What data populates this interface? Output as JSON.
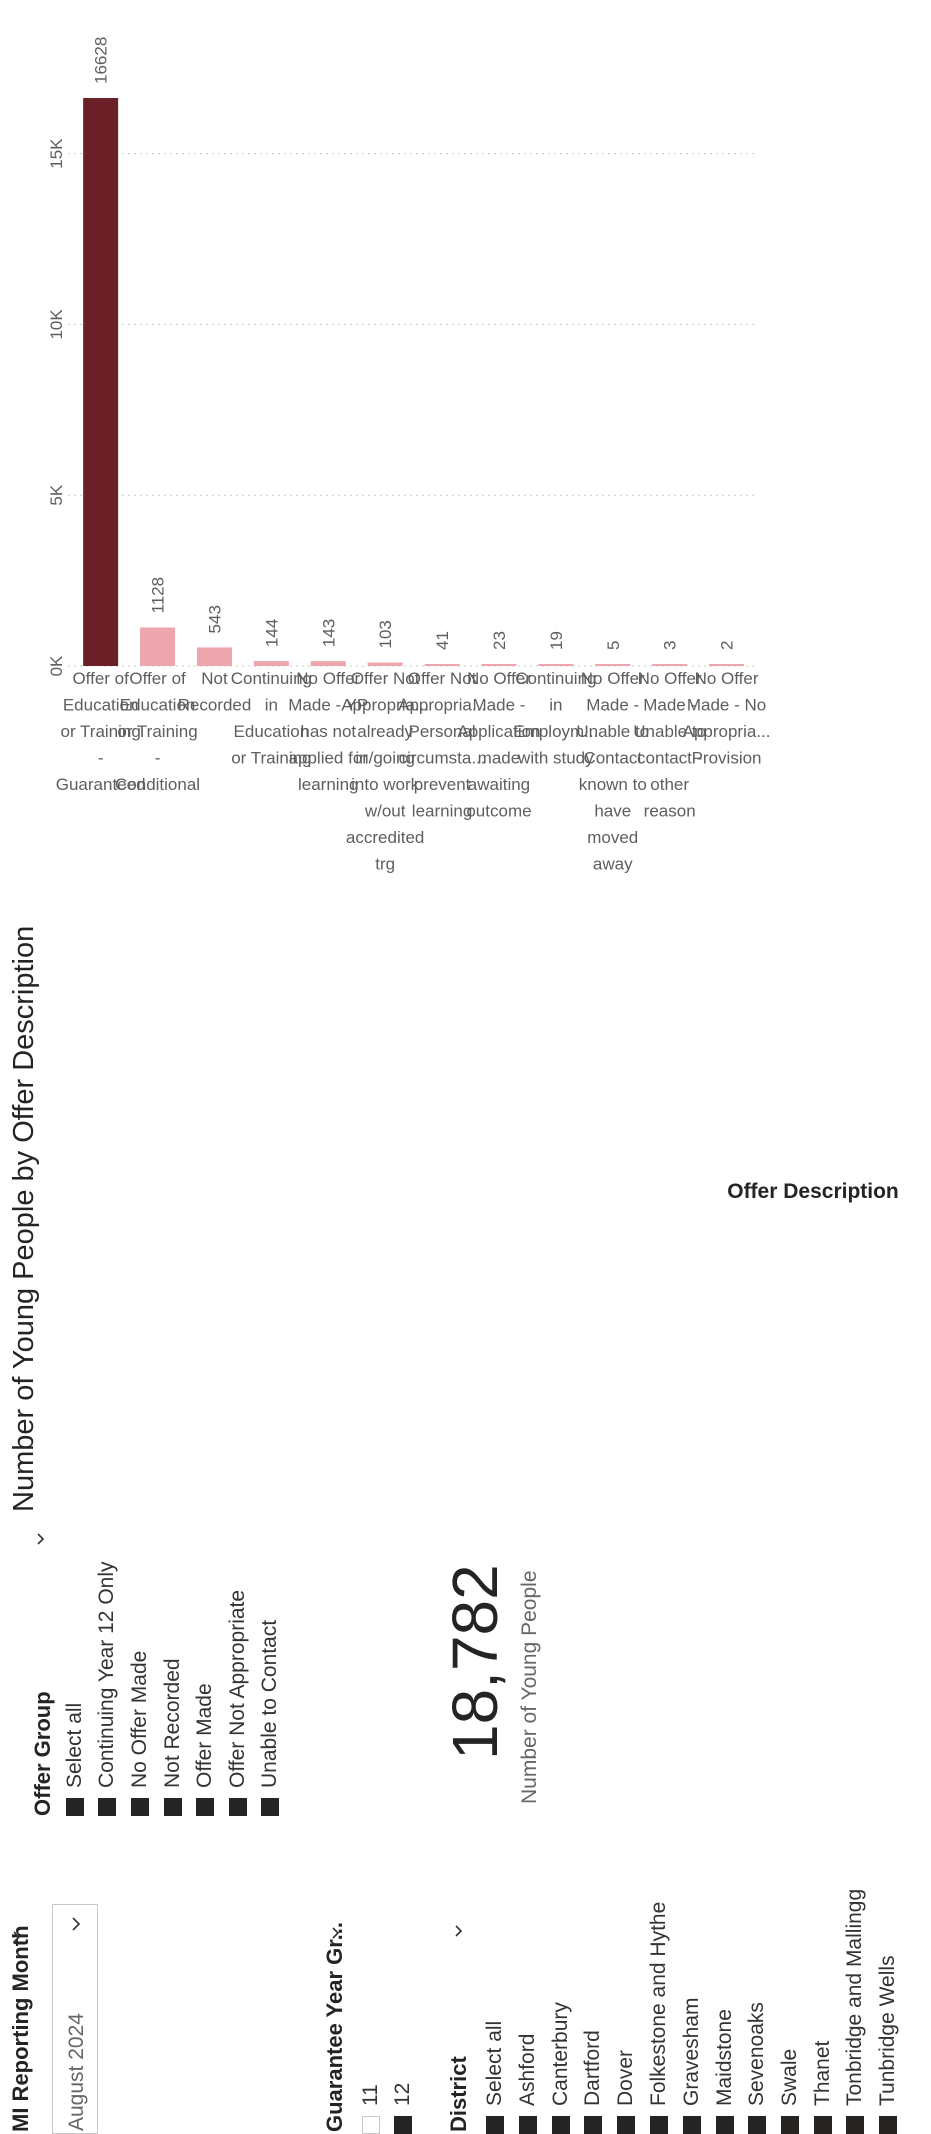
{
  "mi_reporting_month": {
    "title": "MI Reporting Month",
    "selected": "August 2024"
  },
  "guarantee_year": {
    "title": "Guarantee Year Gr...",
    "items": [
      {
        "label": "11",
        "checked": false
      },
      {
        "label": "12",
        "checked": true
      }
    ]
  },
  "district": {
    "title": "District",
    "items": [
      {
        "label": "Select all",
        "checked": true
      },
      {
        "label": "Ashford",
        "checked": true
      },
      {
        "label": "Canterbury",
        "checked": true
      },
      {
        "label": "Dartford",
        "checked": true
      },
      {
        "label": "Dover",
        "checked": true
      },
      {
        "label": "Folkestone and Hythe",
        "checked": true
      },
      {
        "label": "Gravesham",
        "checked": true
      },
      {
        "label": "Maidstone",
        "checked": true
      },
      {
        "label": "Sevenoaks",
        "checked": true
      },
      {
        "label": "Swale",
        "checked": true
      },
      {
        "label": "Thanet",
        "checked": true
      },
      {
        "label": "Tonbridge and Mallingg",
        "checked": true
      },
      {
        "label": "Tunbridge Wells",
        "checked": true
      }
    ]
  },
  "offer_group": {
    "title": "Offer Group",
    "items": [
      {
        "label": "Select all",
        "checked": true
      },
      {
        "label": "Continuing Year 12 Only",
        "checked": true
      },
      {
        "label": "No Offer Made",
        "checked": true
      },
      {
        "label": "Not Recorded",
        "checked": true
      },
      {
        "label": "Offer Made",
        "checked": true
      },
      {
        "label": "Offer Not Appropriate",
        "checked": true
      },
      {
        "label": "Unable to Contact",
        "checked": true
      }
    ]
  },
  "kpi": {
    "value": "18,782",
    "label": "Number of Young People"
  },
  "colors": {
    "bar_primary": "#6b2028",
    "bar_secondary": "#eda6ad",
    "checkbox": "#252423"
  },
  "chart_data": {
    "type": "bar",
    "title": "Number of Young People by Offer Description",
    "xlabel": "Offer Description",
    "ylabel": "Number of Young People",
    "ylim": [
      0,
      17000
    ],
    "yticks": [
      0,
      5000,
      10000,
      15000
    ],
    "ytick_labels": [
      "0K",
      "5K",
      "10K",
      "15K"
    ],
    "grid": true,
    "categories": [
      "Offer of Education or Training - Guaranteed",
      "Offer of Education or Training - Conditional",
      "Not Recorded",
      "Continuing in Education or Training",
      "No Offer Made - YP has not applied for learning",
      "Offer Not Appropria... already in/going into work w/out accredited trg",
      "Offer Not Appropria... Personal circumsta... prevent learning",
      "No Offer Made - Application made awaiting outcome",
      "Continuing in Employm... with study",
      "No Offer Made - Unable to Contact known to have moved away",
      "No Offer Made - Unable to contact - other reason",
      "No Offer Made - No Appropria... Provision"
    ],
    "category_lines": [
      [
        "Offer of",
        "Education",
        "or Training",
        "-",
        "Guaranteed"
      ],
      [
        "Offer of",
        "Education",
        "or Training",
        "-",
        "Conditional"
      ],
      [
        "Not",
        "Recorded"
      ],
      [
        "Continuing",
        "in",
        "Education",
        "or Training"
      ],
      [
        "No Offer",
        "Made - YP",
        "has not",
        "applied for",
        "learning"
      ],
      [
        "Offer Not",
        "Appropria...",
        "already",
        "in/going",
        "into work",
        "w/out",
        "accredited",
        "trg"
      ],
      [
        "Offer Not",
        "Appropria...",
        "Personal",
        "circumsta...",
        "prevent",
        "learning"
      ],
      [
        "No Offer",
        "Made -",
        "Application",
        "made",
        "awaiting",
        "outcome"
      ],
      [
        "Continuing",
        "in",
        "Employm...",
        "with study"
      ],
      [
        "No Offer",
        "Made -",
        "Unable to",
        "Contact",
        "known to",
        "have",
        "moved",
        "away"
      ],
      [
        "No Offer",
        "Made -",
        "Unable to",
        "contact -",
        "other",
        "reason"
      ],
      [
        "No Offer",
        "Made - No",
        "Appropria...",
        "Provision"
      ]
    ],
    "values": [
      16628,
      1128,
      543,
      144,
      143,
      103,
      41,
      23,
      19,
      5,
      3,
      2
    ],
    "data_labels": [
      "16628",
      "1128",
      "543",
      "144",
      "143",
      "103",
      "41",
      "23",
      "19",
      "5",
      "3",
      "2"
    ]
  }
}
